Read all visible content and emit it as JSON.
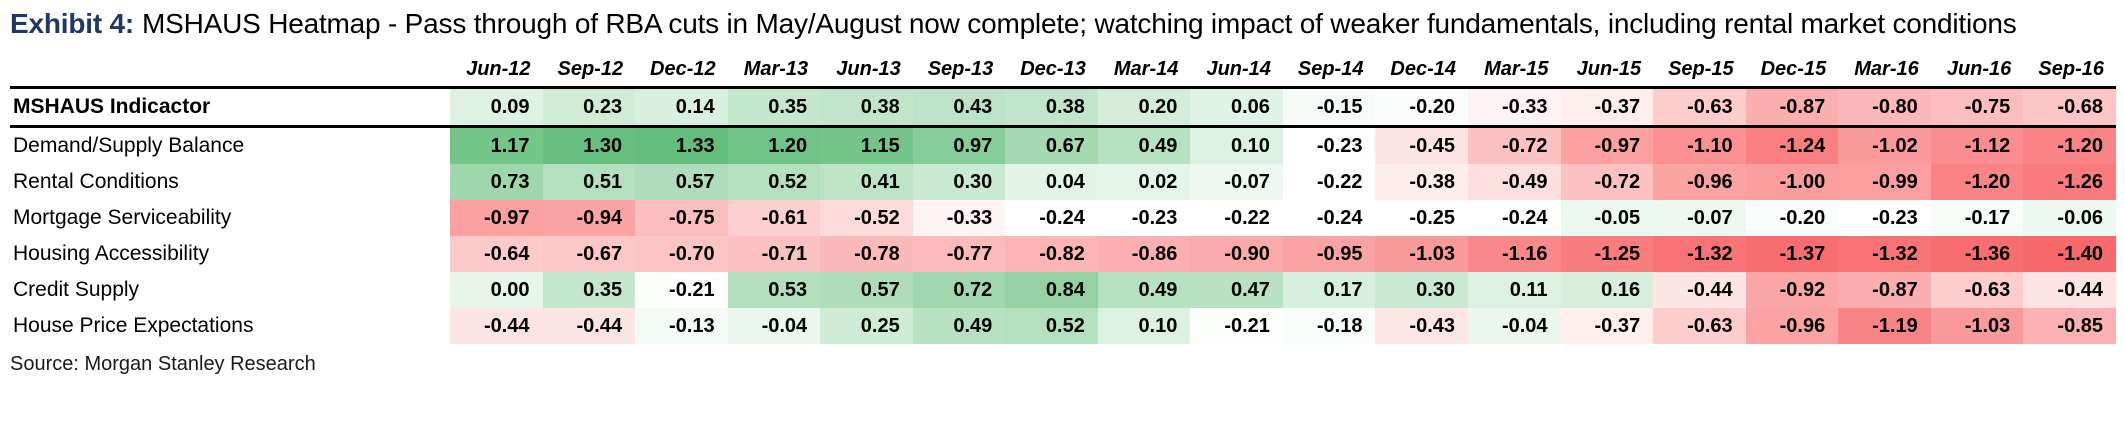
{
  "title": {
    "exhibit_label": "Exhibit 4:",
    "text": "MSHAUS Heatmap - Pass through of RBA cuts in May/August now complete; watching impact of weaker fundamentals, including rental market conditions"
  },
  "source": "Source: Morgan Stanley Research",
  "colors": {
    "exhibit_label_accent": "#1f3864",
    "heat_positive": "#63BE7B",
    "heat_negative": "#F8696B",
    "heat_midpoint": "#FFFFFF",
    "rule_color": "#000000"
  },
  "chart_data": {
    "type": "heatmap",
    "title": "MSHAUS Heatmap",
    "columns": [
      "Jun-12",
      "Sep-12",
      "Dec-12",
      "Mar-13",
      "Jun-13",
      "Sep-13",
      "Dec-13",
      "Mar-14",
      "Jun-14",
      "Sep-14",
      "Dec-14",
      "Mar-15",
      "Jun-15",
      "Sep-15",
      "Dec-15",
      "Mar-16",
      "Jun-16",
      "Sep-16"
    ],
    "rows": [
      {
        "label": "MSHAUS Indicactor",
        "emphasis": true,
        "values": [
          0.09,
          0.23,
          0.14,
          0.35,
          0.38,
          0.43,
          0.38,
          0.2,
          0.06,
          -0.15,
          -0.2,
          -0.33,
          -0.37,
          -0.63,
          -0.87,
          -0.8,
          -0.75,
          -0.68
        ]
      },
      {
        "label": "Demand/Supply Balance",
        "emphasis": false,
        "values": [
          1.17,
          1.3,
          1.33,
          1.2,
          1.15,
          0.97,
          0.67,
          0.49,
          0.1,
          -0.23,
          -0.45,
          -0.72,
          -0.97,
          -1.1,
          -1.24,
          -1.02,
          -1.12,
          -1.2
        ]
      },
      {
        "label": "Rental Conditions",
        "emphasis": false,
        "values": [
          0.73,
          0.51,
          0.57,
          0.52,
          0.41,
          0.3,
          0.04,
          0.02,
          -0.07,
          -0.22,
          -0.38,
          -0.49,
          -0.72,
          -0.96,
          -1.0,
          -0.99,
          -1.2,
          -1.26
        ]
      },
      {
        "label": "Mortgage Serviceability",
        "emphasis": false,
        "values": [
          -0.97,
          -0.94,
          -0.75,
          -0.61,
          -0.52,
          -0.33,
          -0.24,
          -0.23,
          -0.22,
          -0.24,
          -0.25,
          -0.24,
          -0.05,
          -0.07,
          -0.2,
          -0.23,
          -0.17,
          -0.06
        ]
      },
      {
        "label": "Housing Accessibility",
        "emphasis": false,
        "values": [
          -0.64,
          -0.67,
          -0.7,
          -0.71,
          -0.78,
          -0.77,
          -0.82,
          -0.86,
          -0.9,
          -0.95,
          -1.03,
          -1.16,
          -1.25,
          -1.32,
          -1.37,
          -1.32,
          -1.36,
          -1.4
        ]
      },
      {
        "label": "Credit Supply",
        "emphasis": false,
        "values": [
          0.0,
          0.35,
          -0.21,
          0.53,
          0.57,
          0.72,
          0.84,
          0.49,
          0.47,
          0.17,
          0.3,
          0.11,
          0.16,
          -0.44,
          -0.92,
          -0.87,
          -0.63,
          -0.44
        ]
      },
      {
        "label": "House Price Expectations",
        "emphasis": false,
        "values": [
          -0.44,
          -0.44,
          -0.13,
          -0.04,
          0.25,
          0.49,
          0.52,
          0.1,
          -0.21,
          -0.18,
          -0.43,
          -0.04,
          -0.37,
          -0.63,
          -0.96,
          -1.19,
          -1.03,
          -0.85
        ]
      }
    ],
    "value_format": "two-decimals",
    "color_scale": {
      "min": -1.4,
      "mid": -0.24,
      "max": 1.33,
      "min_color": "#F8696B",
      "mid_color": "#FFFFFF",
      "max_color": "#63BE7B"
    },
    "legend_position": "none",
    "grid": false
  }
}
